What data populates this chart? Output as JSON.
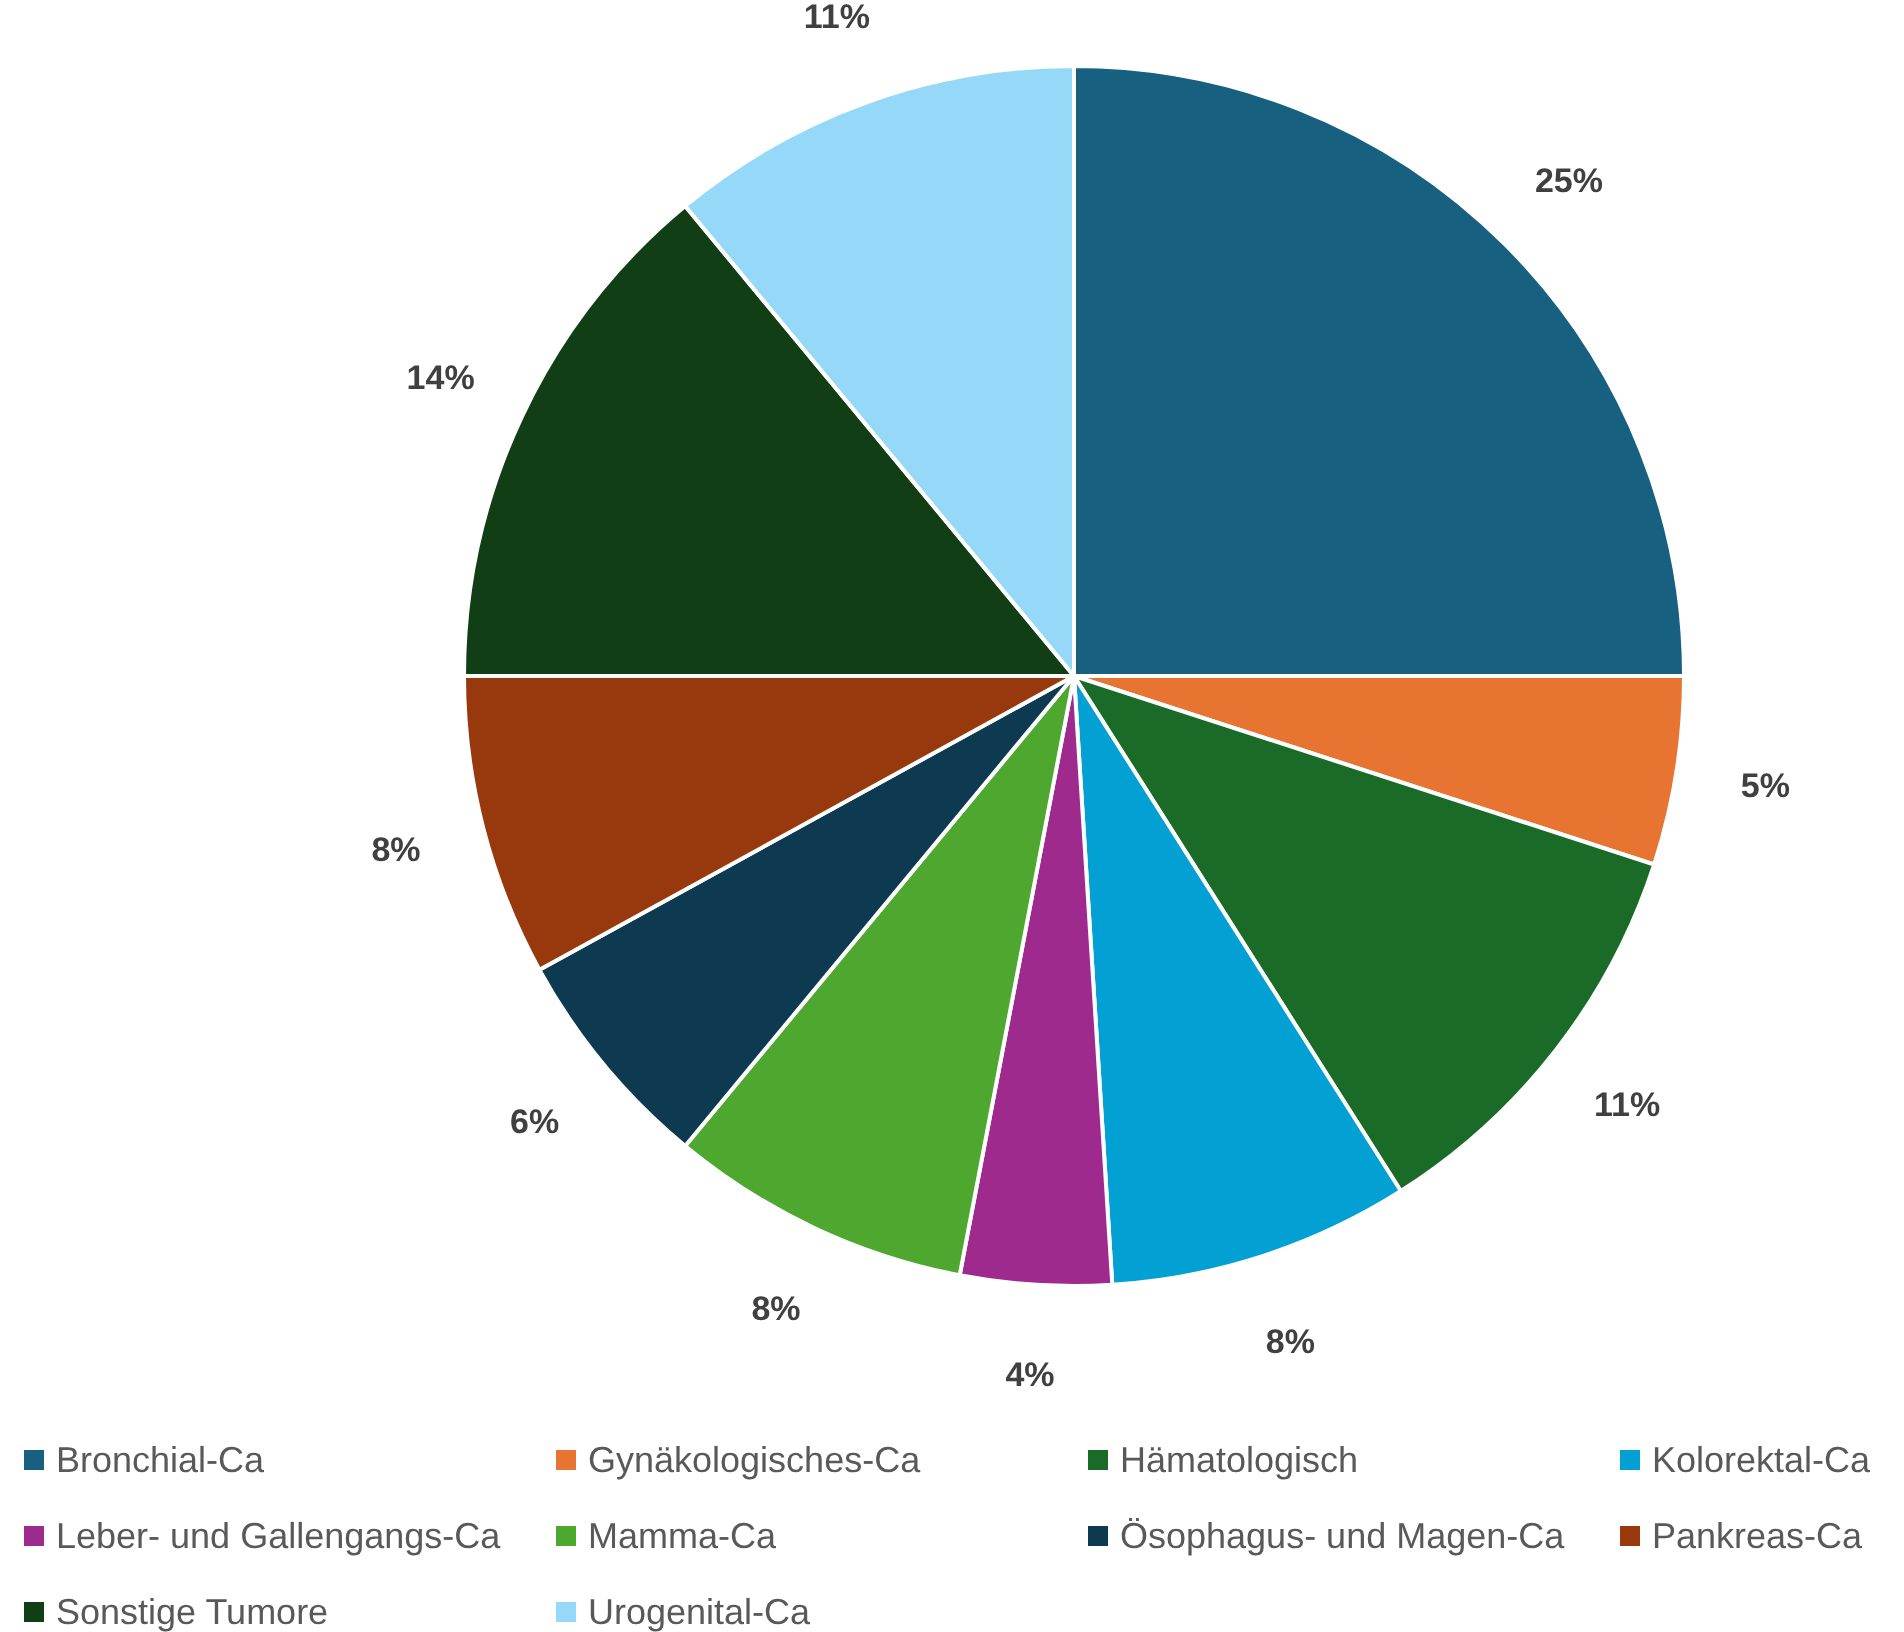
{
  "chart_data": {
    "type": "pie",
    "categories": [
      "Bronchial-Ca",
      "Gynäkologisches-Ca",
      "Hämatologisch",
      "Kolorektal-Ca",
      "Leber- und Gallengangs-Ca",
      "Mamma-Ca",
      "Ösophagus- und Magen-Ca",
      "Pankreas-Ca",
      "Sonstige Tumore",
      "Urogenital-Ca"
    ],
    "values": [
      25,
      5,
      11,
      8,
      4,
      8,
      6,
      8,
      14,
      11
    ],
    "colors": [
      "#17607f",
      "#e87431",
      "#1a6b28",
      "#02a0d3",
      "#9e2a8e",
      "#4ea72e",
      "#0d3951",
      "#97380d",
      "#123e16",
      "#96d8f8"
    ],
    "value_labels": [
      "25%",
      "5%",
      "11%",
      "8%",
      "4%",
      "8%",
      "6%",
      "8%",
      "14%",
      "11%"
    ],
    "legend": "bottom"
  }
}
